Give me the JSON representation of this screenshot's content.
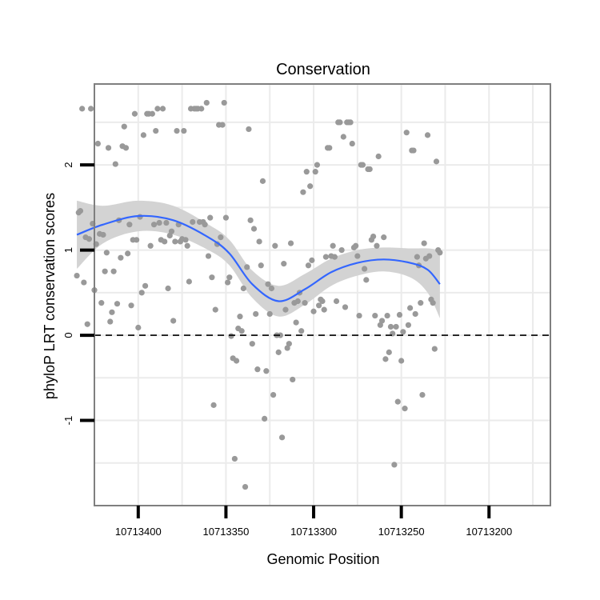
{
  "chart_data": {
    "type": "scatter",
    "title": "Conservation",
    "xlabel": "Genomic Position",
    "ylabel": "phyloP LRT conservation scores",
    "x_reversed": true,
    "xlim": [
      10713425,
      10713165
    ],
    "ylim": [
      -2.0,
      2.95
    ],
    "xticks": [
      {
        "value": 10713400,
        "label": "10713400"
      },
      {
        "value": 10713350,
        "label": "10713350"
      },
      {
        "value": 10713300,
        "label": "10713300"
      },
      {
        "value": 10713250,
        "label": "10713250"
      },
      {
        "value": 10713200,
        "label": "10713200"
      }
    ],
    "yticks": [
      {
        "value": -1,
        "label": "-1"
      },
      {
        "value": 0,
        "label": "0"
      },
      {
        "value": 1,
        "label": "1"
      },
      {
        "value": 2,
        "label": "2"
      }
    ],
    "reference_line": {
      "y": 0,
      "style": "dashed"
    },
    "grid": true,
    "colors": {
      "points": "#999999",
      "smooth": "#3366ff",
      "band": "#d3d3d3",
      "grid": "#ebebeb",
      "frame": "#7f7f7f"
    },
    "points": [
      {
        "x": 10713435,
        "y": 0.7
      },
      {
        "x": 10713434,
        "y": 1.44
      },
      {
        "x": 10713433,
        "y": 1.46
      },
      {
        "x": 10713432,
        "y": 2.66
      },
      {
        "x": 10713431,
        "y": 0.62
      },
      {
        "x": 10713430,
        "y": 1.15
      },
      {
        "x": 10713429,
        "y": 0.13
      },
      {
        "x": 10713428,
        "y": 1.13
      },
      {
        "x": 10713427,
        "y": 2.66
      },
      {
        "x": 10713426,
        "y": 1.31
      },
      {
        "x": 10713425,
        "y": 0.53
      },
      {
        "x": 10713424,
        "y": 1.07
      },
      {
        "x": 10713423,
        "y": 2.25
      },
      {
        "x": 10713422,
        "y": 1.19
      },
      {
        "x": 10713421,
        "y": 0.38
      },
      {
        "x": 10713420,
        "y": 1.18
      },
      {
        "x": 10713419,
        "y": 0.75
      },
      {
        "x": 10713418,
        "y": 0.97
      },
      {
        "x": 10713417,
        "y": 2.2
      },
      {
        "x": 10713416,
        "y": 0.16
      },
      {
        "x": 10713415,
        "y": 0.27
      },
      {
        "x": 10713414,
        "y": 0.75
      },
      {
        "x": 10713413,
        "y": 2.01
      },
      {
        "x": 10713412,
        "y": 0.37
      },
      {
        "x": 10713411,
        "y": 1.35
      },
      {
        "x": 10713410,
        "y": 0.91
      },
      {
        "x": 10713409,
        "y": 2.22
      },
      {
        "x": 10713408,
        "y": 2.45
      },
      {
        "x": 10713407,
        "y": 2.2
      },
      {
        "x": 10713406,
        "y": 0.96
      },
      {
        "x": 10713405,
        "y": 1.3
      },
      {
        "x": 10713404,
        "y": 0.35
      },
      {
        "x": 10713403,
        "y": 1.12
      },
      {
        "x": 10713402,
        "y": 2.6
      },
      {
        "x": 10713401,
        "y": 1.12
      },
      {
        "x": 10713400,
        "y": 0.09
      },
      {
        "x": 10713399,
        "y": 1.39
      },
      {
        "x": 10713398,
        "y": 0.5
      },
      {
        "x": 10713397,
        "y": 2.35
      },
      {
        "x": 10713396,
        "y": 0.58
      },
      {
        "x": 10713395,
        "y": 2.6
      },
      {
        "x": 10713394,
        "y": 2.6
      },
      {
        "x": 10713393,
        "y": 1.05
      },
      {
        "x": 10713392,
        "y": 2.6
      },
      {
        "x": 10713391,
        "y": 1.3
      },
      {
        "x": 10713390,
        "y": 2.4
      },
      {
        "x": 10713389,
        "y": 2.66
      },
      {
        "x": 10713388,
        "y": 1.32
      },
      {
        "x": 10713387,
        "y": 1.12
      },
      {
        "x": 10713386,
        "y": 2.66
      },
      {
        "x": 10713385,
        "y": 1.1
      },
      {
        "x": 10713384,
        "y": 1.32
      },
      {
        "x": 10713383,
        "y": 0.55
      },
      {
        "x": 10713382,
        "y": 1.17
      },
      {
        "x": 10713381,
        "y": 1.22
      },
      {
        "x": 10713380,
        "y": 0.17
      },
      {
        "x": 10713379,
        "y": 1.1
      },
      {
        "x": 10713378,
        "y": 2.4
      },
      {
        "x": 10713377,
        "y": 1.3
      },
      {
        "x": 10713376,
        "y": 1.1
      },
      {
        "x": 10713375,
        "y": 1.13
      },
      {
        "x": 10713374,
        "y": 2.4
      },
      {
        "x": 10713373,
        "y": 1.12
      },
      {
        "x": 10713372,
        "y": 1.05
      },
      {
        "x": 10713371,
        "y": 0.63
      },
      {
        "x": 10713370,
        "y": 2.66
      },
      {
        "x": 10713369,
        "y": 1.33
      },
      {
        "x": 10713368,
        "y": 2.66
      },
      {
        "x": 10713367,
        "y": 2.66
      },
      {
        "x": 10713366,
        "y": 2.66
      },
      {
        "x": 10713365,
        "y": 1.33
      },
      {
        "x": 10713364,
        "y": 2.66
      },
      {
        "x": 10713363,
        "y": 1.33
      },
      {
        "x": 10713362,
        "y": 1.3
      },
      {
        "x": 10713361,
        "y": 2.73
      },
      {
        "x": 10713360,
        "y": 0.93
      },
      {
        "x": 10713359,
        "y": 1.38
      },
      {
        "x": 10713358,
        "y": 0.68
      },
      {
        "x": 10713357,
        "y": -0.82
      },
      {
        "x": 10713356,
        "y": 0.3
      },
      {
        "x": 10713355,
        "y": 1.07
      },
      {
        "x": 10713354,
        "y": 2.47
      },
      {
        "x": 10713353,
        "y": 1.15
      },
      {
        "x": 10713352,
        "y": 2.47
      },
      {
        "x": 10713351,
        "y": 2.73
      },
      {
        "x": 10713350,
        "y": 1.38
      },
      {
        "x": 10713349,
        "y": 0.62
      },
      {
        "x": 10713348,
        "y": 0.68
      },
      {
        "x": 10713347,
        "y": -0.01
      },
      {
        "x": 10713346,
        "y": -0.27
      },
      {
        "x": 10713345,
        "y": -1.45
      },
      {
        "x": 10713344,
        "y": -0.3
      },
      {
        "x": 10713343,
        "y": 0.08
      },
      {
        "x": 10713342,
        "y": 0.22
      },
      {
        "x": 10713341,
        "y": 0.05
      },
      {
        "x": 10713340,
        "y": 0.55
      },
      {
        "x": 10713339,
        "y": -1.78
      },
      {
        "x": 10713338,
        "y": 0.8
      },
      {
        "x": 10713337,
        "y": 2.42
      },
      {
        "x": 10713336,
        "y": 1.35
      },
      {
        "x": 10713335,
        "y": -0.1
      },
      {
        "x": 10713334,
        "y": 1.25
      },
      {
        "x": 10713333,
        "y": 0.25
      },
      {
        "x": 10713332,
        "y": -0.4
      },
      {
        "x": 10713331,
        "y": 1.1
      },
      {
        "x": 10713330,
        "y": 0.82
      },
      {
        "x": 10713329,
        "y": 1.81
      },
      {
        "x": 10713328,
        "y": -0.98
      },
      {
        "x": 10713327,
        "y": -0.42
      },
      {
        "x": 10713326,
        "y": 0.6
      },
      {
        "x": 10713325,
        "y": 0.25
      },
      {
        "x": 10713324,
        "y": 0.55
      },
      {
        "x": 10713323,
        "y": -0.7
      },
      {
        "x": 10713322,
        "y": 1.05
      },
      {
        "x": 10713321,
        "y": 0.0
      },
      {
        "x": 10713320,
        "y": -0.2
      },
      {
        "x": 10713319,
        "y": 0.0
      },
      {
        "x": 10713318,
        "y": -1.2
      },
      {
        "x": 10713317,
        "y": 0.84
      },
      {
        "x": 10713316,
        "y": 0.3
      },
      {
        "x": 10713315,
        "y": -0.15
      },
      {
        "x": 10713314,
        "y": -0.1
      },
      {
        "x": 10713313,
        "y": 1.08
      },
      {
        "x": 10713312,
        "y": -0.52
      },
      {
        "x": 10713311,
        "y": 0.38
      },
      {
        "x": 10713310,
        "y": 0.15
      },
      {
        "x": 10713309,
        "y": 0.4
      },
      {
        "x": 10713308,
        "y": 0.5
      },
      {
        "x": 10713307,
        "y": 0.05
      },
      {
        "x": 10713306,
        "y": 1.68
      },
      {
        "x": 10713305,
        "y": 0.38
      },
      {
        "x": 10713304,
        "y": 1.92
      },
      {
        "x": 10713303,
        "y": 0.82
      },
      {
        "x": 10713302,
        "y": 1.75
      },
      {
        "x": 10713301,
        "y": 0.88
      },
      {
        "x": 10713300,
        "y": 0.28
      },
      {
        "x": 10713299,
        "y": 1.92
      },
      {
        "x": 10713298,
        "y": 2.0
      },
      {
        "x": 10713297,
        "y": 0.35
      },
      {
        "x": 10713296,
        "y": 0.42
      },
      {
        "x": 10713295,
        "y": 0.4
      },
      {
        "x": 10713294,
        "y": 0.3
      },
      {
        "x": 10713293,
        "y": 0.92
      },
      {
        "x": 10713292,
        "y": 2.2
      },
      {
        "x": 10713291,
        "y": 2.2
      },
      {
        "x": 10713290,
        "y": 0.93
      },
      {
        "x": 10713289,
        "y": 1.05
      },
      {
        "x": 10713288,
        "y": 0.92
      },
      {
        "x": 10713287,
        "y": 0.4
      },
      {
        "x": 10713286,
        "y": 2.5
      },
      {
        "x": 10713285,
        "y": 2.5
      },
      {
        "x": 10713284,
        "y": 1.0
      },
      {
        "x": 10713283,
        "y": 2.33
      },
      {
        "x": 10713282,
        "y": 0.33
      },
      {
        "x": 10713281,
        "y": 2.5
      },
      {
        "x": 10713280,
        "y": 2.5
      },
      {
        "x": 10713279,
        "y": 2.5
      },
      {
        "x": 10713278,
        "y": 2.25
      },
      {
        "x": 10713277,
        "y": 1.03
      },
      {
        "x": 10713276,
        "y": 1.05
      },
      {
        "x": 10713275,
        "y": 0.93
      },
      {
        "x": 10713274,
        "y": 0.23
      },
      {
        "x": 10713273,
        "y": 2.0
      },
      {
        "x": 10713272,
        "y": 2.0
      },
      {
        "x": 10713271,
        "y": 0.78
      },
      {
        "x": 10713270,
        "y": 0.65
      },
      {
        "x": 10713269,
        "y": 1.95
      },
      {
        "x": 10713268,
        "y": 1.95
      },
      {
        "x": 10713267,
        "y": 1.12
      },
      {
        "x": 10713266,
        "y": 1.16
      },
      {
        "x": 10713265,
        "y": 0.23
      },
      {
        "x": 10713264,
        "y": 1.05
      },
      {
        "x": 10713263,
        "y": 2.1
      },
      {
        "x": 10713262,
        "y": 0.12
      },
      {
        "x": 10713261,
        "y": 0.17
      },
      {
        "x": 10713260,
        "y": 1.15
      },
      {
        "x": 10713259,
        "y": -0.28
      },
      {
        "x": 10713258,
        "y": 0.23
      },
      {
        "x": 10713257,
        "y": -0.2
      },
      {
        "x": 10713256,
        "y": 0.1
      },
      {
        "x": 10713255,
        "y": 0.02
      },
      {
        "x": 10713254,
        "y": -1.52
      },
      {
        "x": 10713253,
        "y": 0.1
      },
      {
        "x": 10713252,
        "y": -0.78
      },
      {
        "x": 10713251,
        "y": 0.24
      },
      {
        "x": 10713250,
        "y": -0.3
      },
      {
        "x": 10713249,
        "y": 0.04
      },
      {
        "x": 10713248,
        "y": -0.86
      },
      {
        "x": 10713247,
        "y": 2.38
      },
      {
        "x": 10713246,
        "y": 0.12
      },
      {
        "x": 10713245,
        "y": 0.32
      },
      {
        "x": 10713244,
        "y": 2.17
      },
      {
        "x": 10713243,
        "y": 2.17
      },
      {
        "x": 10713242,
        "y": 0.25
      },
      {
        "x": 10713241,
        "y": 0.92
      },
      {
        "x": 10713240,
        "y": 0.82
      },
      {
        "x": 10713239,
        "y": 0.38
      },
      {
        "x": 10713238,
        "y": -0.7
      },
      {
        "x": 10713237,
        "y": 1.08
      },
      {
        "x": 10713236,
        "y": 0.9
      },
      {
        "x": 10713235,
        "y": 2.35
      },
      {
        "x": 10713234,
        "y": 0.93
      },
      {
        "x": 10713233,
        "y": 0.42
      },
      {
        "x": 10713232,
        "y": 0.38
      },
      {
        "x": 10713231,
        "y": -0.16
      },
      {
        "x": 10713230,
        "y": 2.04
      },
      {
        "x": 10713229,
        "y": 1.0
      },
      {
        "x": 10713228,
        "y": 0.97
      }
    ],
    "smooth": [
      {
        "x": 10713435,
        "y": 1.18,
        "lo": 0.78,
        "hi": 1.58
      },
      {
        "x": 10713420,
        "y": 1.3,
        "lo": 1.08,
        "hi": 1.52
      },
      {
        "x": 10713400,
        "y": 1.4,
        "lo": 1.22,
        "hi": 1.58
      },
      {
        "x": 10713380,
        "y": 1.35,
        "lo": 1.18,
        "hi": 1.52
      },
      {
        "x": 10713360,
        "y": 1.15,
        "lo": 1.0,
        "hi": 1.3
      },
      {
        "x": 10713348,
        "y": 0.96,
        "lo": 0.82,
        "hi": 1.12
      },
      {
        "x": 10713335,
        "y": 0.6,
        "lo": 0.44,
        "hi": 0.76
      },
      {
        "x": 10713320,
        "y": 0.4,
        "lo": 0.22,
        "hi": 0.58
      },
      {
        "x": 10713305,
        "y": 0.54,
        "lo": 0.36,
        "hi": 0.72
      },
      {
        "x": 10713290,
        "y": 0.74,
        "lo": 0.58,
        "hi": 0.9
      },
      {
        "x": 10713275,
        "y": 0.85,
        "lo": 0.7,
        "hi": 1.0
      },
      {
        "x": 10713260,
        "y": 0.89,
        "lo": 0.75,
        "hi": 1.03
      },
      {
        "x": 10713245,
        "y": 0.85,
        "lo": 0.68,
        "hi": 1.02
      },
      {
        "x": 10713235,
        "y": 0.77,
        "lo": 0.5,
        "hi": 1.02
      },
      {
        "x": 10713228,
        "y": 0.6,
        "lo": 0.2,
        "hi": 1.0
      }
    ]
  }
}
